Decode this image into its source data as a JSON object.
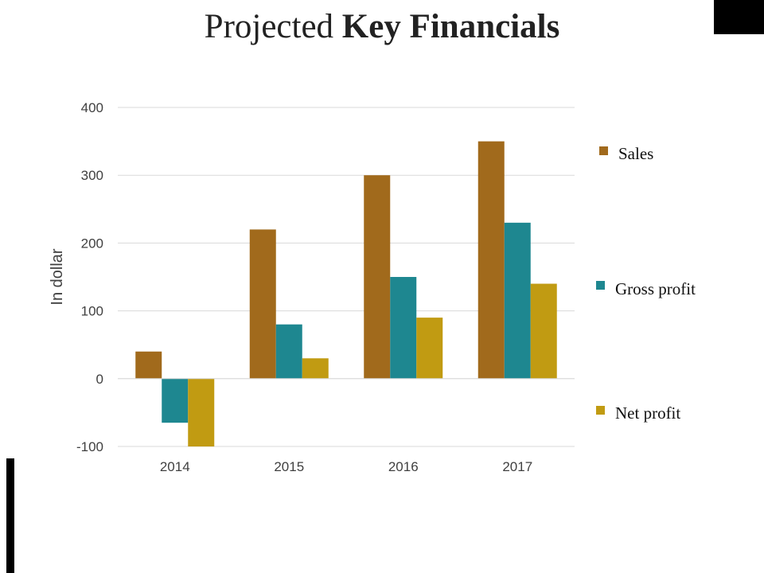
{
  "slide": {
    "title_plain": "Projected",
    "title_bold": "Key Financials"
  },
  "chart_data": {
    "type": "bar",
    "title": "Projected Key Financials",
    "xlabel": "",
    "ylabel": "In dollar",
    "categories": [
      "2014",
      "2015",
      "2016",
      "2017"
    ],
    "series": [
      {
        "name": "Sales",
        "color": "#A16A1C",
        "values": [
          40,
          220,
          300,
          350
        ]
      },
      {
        "name": "Gross profit",
        "color": "#1E8790",
        "values": [
          -65,
          80,
          150,
          230
        ]
      },
      {
        "name": "Net profit",
        "color": "#C19B12",
        "values": [
          -100,
          30,
          90,
          140
        ]
      }
    ],
    "ylim": [
      -100,
      400
    ],
    "yticks": [
      400,
      300,
      200,
      100,
      0,
      -100
    ],
    "grid": true,
    "legend_position": "right"
  }
}
